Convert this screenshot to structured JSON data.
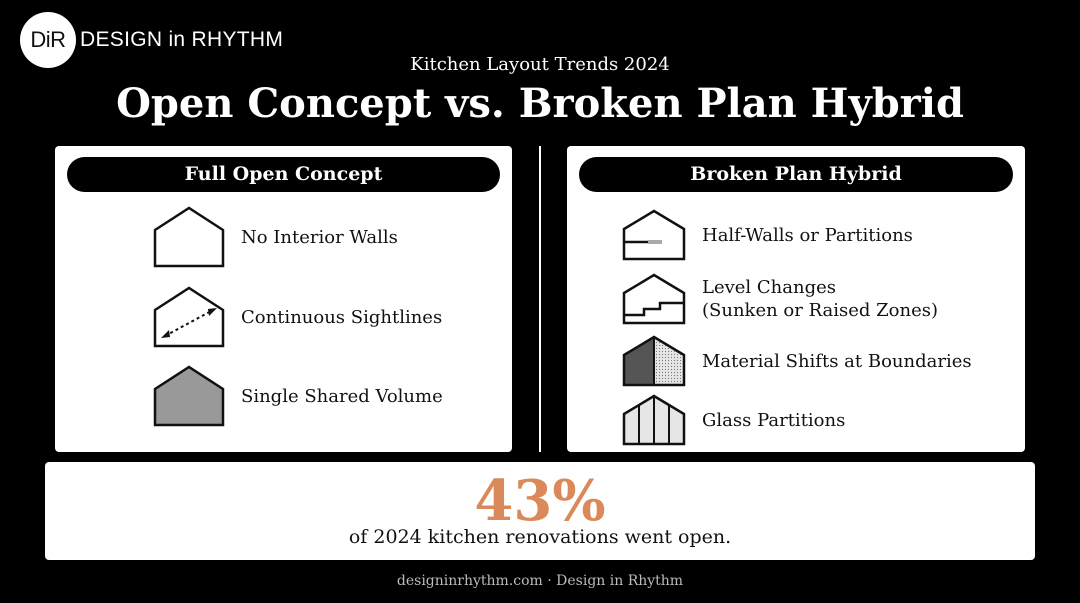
{
  "logo": {
    "mark": "DiR",
    "text": "DESIGN in RHYTHM"
  },
  "header": {
    "subtitle": "Kitchen Layout Trends 2024",
    "title": "Open Concept vs. Broken Plan Hybrid"
  },
  "left_panel": {
    "heading": "Full Open Concept",
    "items": [
      {
        "label": "No Interior Walls",
        "icon": "house-outline-icon"
      },
      {
        "label": "Continuous Sightlines",
        "icon": "house-sightline-arrow-icon"
      },
      {
        "label": "Single Shared Volume",
        "icon": "house-filled-gray-icon"
      }
    ]
  },
  "right_panel": {
    "heading": "Broken Plan Hybrid",
    "items": [
      {
        "label": "Half-Walls or Partitions",
        "icon": "house-half-wall-icon"
      },
      {
        "label": "Level Changes",
        "label2": "(Sunken or Raised Zones)",
        "icon": "house-level-steps-icon"
      },
      {
        "label": "Material Shifts at Boundaries",
        "icon": "house-two-material-icon"
      },
      {
        "label": "Glass Partitions",
        "icon": "house-glass-partition-icon"
      }
    ]
  },
  "stat": {
    "value": "43%",
    "caption": "of 2024 kitchen renovations went open.",
    "accent_color": "#d9895a"
  },
  "footer": {
    "text": "designinrhythm.com · Design in Rhythm"
  }
}
